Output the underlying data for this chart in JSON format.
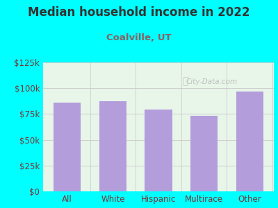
{
  "title": "Median household income in 2022",
  "subtitle": "Coalville, UT",
  "categories": [
    "All",
    "White",
    "Hispanic",
    "Multirace",
    "Other"
  ],
  "values": [
    86000,
    87500,
    79000,
    73000,
    97000
  ],
  "bar_color": "#b39ddb",
  "background_color": "#00ffff",
  "plot_bg_color": "#e8f5e9",
  "title_color": "#333333",
  "subtitle_color": "#8b6060",
  "tick_label_color": "#7a3535",
  "grid_color": "#c8c8c8",
  "ylim": [
    0,
    125000
  ],
  "yticks": [
    0,
    25000,
    50000,
    75000,
    100000,
    125000
  ],
  "title_fontsize": 12,
  "subtitle_fontsize": 9.5,
  "tick_fontsize": 8.5,
  "watermark": "City-Data.com"
}
